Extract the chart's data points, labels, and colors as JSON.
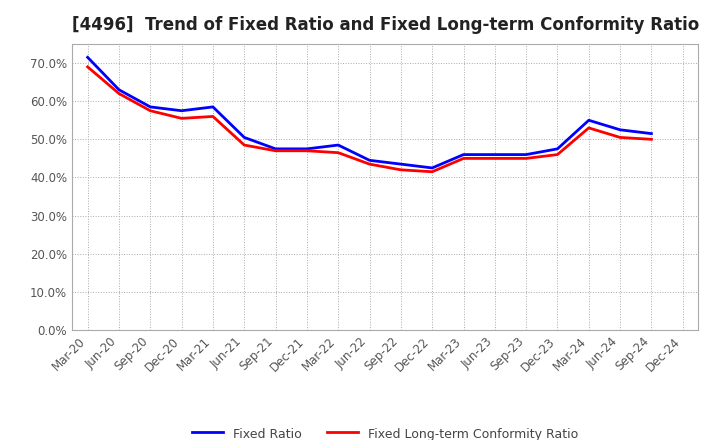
{
  "title": "[4496]  Trend of Fixed Ratio and Fixed Long-term Conformity Ratio",
  "x_labels": [
    "Mar-20",
    "Jun-20",
    "Sep-20",
    "Dec-20",
    "Mar-21",
    "Jun-21",
    "Sep-21",
    "Dec-21",
    "Mar-22",
    "Jun-22",
    "Sep-22",
    "Dec-22",
    "Mar-23",
    "Jun-23",
    "Sep-23",
    "Dec-23",
    "Mar-24",
    "Jun-24",
    "Sep-24",
    "Dec-24"
  ],
  "fixed_ratio": [
    71.5,
    63.0,
    58.5,
    57.5,
    58.5,
    50.5,
    47.5,
    47.5,
    48.5,
    44.5,
    43.5,
    42.5,
    46.0,
    46.0,
    46.0,
    47.5,
    55.0,
    52.5,
    51.5,
    null
  ],
  "fixed_lt_ratio": [
    69.0,
    62.0,
    57.5,
    55.5,
    56.0,
    48.5,
    47.0,
    47.0,
    46.5,
    43.5,
    42.0,
    41.5,
    45.0,
    45.0,
    45.0,
    46.0,
    53.0,
    50.5,
    50.0,
    null
  ],
  "ylim": [
    0,
    75
  ],
  "yticks": [
    0,
    10,
    20,
    30,
    40,
    50,
    60,
    70
  ],
  "blue_color": "#0000FF",
  "red_color": "#FF0000",
  "bg_color": "#FFFFFF",
  "grid_color": "#AAAAAA",
  "legend_fixed_ratio": "Fixed Ratio",
  "legend_fixed_lt_ratio": "Fixed Long-term Conformity Ratio",
  "title_fontsize": 12,
  "tick_fontsize": 8.5,
  "legend_fontsize": 9,
  "line_width": 2.0
}
